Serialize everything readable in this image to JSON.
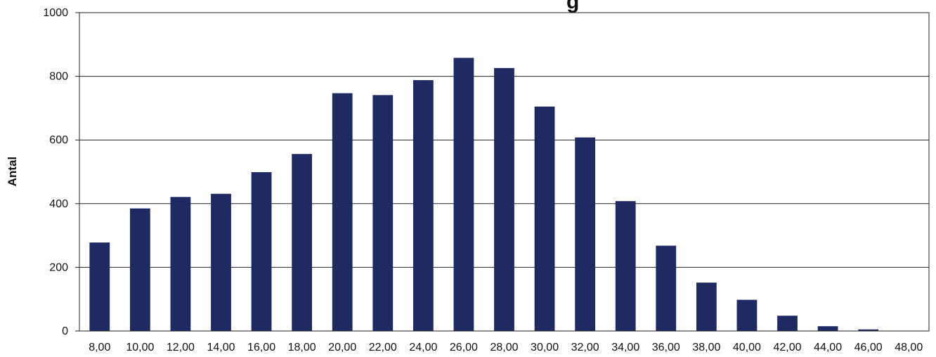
{
  "chart_data": {
    "type": "bar",
    "title_fragment": "g",
    "xlabel": "",
    "ylabel": "Antal",
    "ylim": [
      0,
      1000
    ],
    "yticks": [
      0,
      200,
      400,
      600,
      800,
      1000
    ],
    "grid": true,
    "legend": "none",
    "bar_color": "#1f2a63",
    "categories": [
      "8,00",
      "10,00",
      "12,00",
      "14,00",
      "16,00",
      "18,00",
      "20,00",
      "22,00",
      "24,00",
      "26,00",
      "28,00",
      "30,00",
      "32,00",
      "34,00",
      "36,00",
      "38,00",
      "40,00",
      "42,00",
      "44,00",
      "46,00",
      "48,00"
    ],
    "values": [
      278,
      385,
      421,
      431,
      499,
      556,
      747,
      741,
      788,
      858,
      826,
      705,
      608,
      408,
      268,
      152,
      98,
      48,
      15,
      5,
      0
    ]
  }
}
